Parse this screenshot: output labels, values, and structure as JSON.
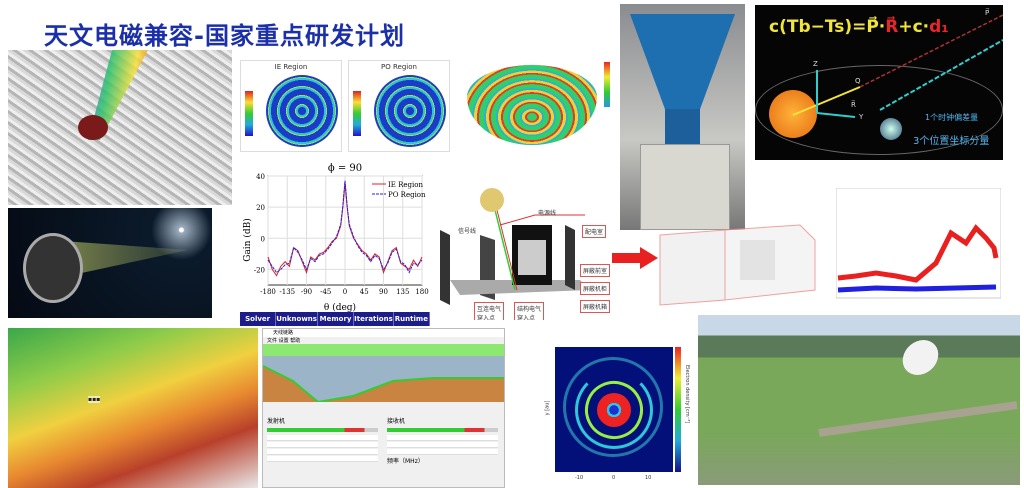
{
  "title": "天文电磁兼容-国家重点研发计划",
  "patterns": {
    "left_label": "IE Region",
    "right_label": "PO Region"
  },
  "gain_table_headers": [
    "Solver",
    "Unknowns",
    "Memory",
    "Iterations",
    "Runtime"
  ],
  "chart_data": {
    "type": "line",
    "title": "ϕ = 90",
    "xlabel": "θ (deg)",
    "ylabel": "Gain (dB)",
    "xlim": [
      -180,
      180
    ],
    "ylim": [
      -30,
      40
    ],
    "xticks": [
      -180,
      -135,
      -90,
      -45,
      0,
      45,
      90,
      135,
      180
    ],
    "yticks": [
      -20,
      0,
      20,
      40
    ],
    "grid": true,
    "legend_position": "top-right",
    "x": [
      -180,
      -170,
      -160,
      -150,
      -140,
      -130,
      -120,
      -110,
      -100,
      -90,
      -80,
      -70,
      -60,
      -50,
      -40,
      -30,
      -20,
      -10,
      -5,
      0,
      5,
      10,
      20,
      30,
      40,
      50,
      60,
      70,
      80,
      90,
      100,
      110,
      120,
      130,
      140,
      150,
      160,
      170,
      180
    ],
    "series": [
      {
        "name": "IE Region",
        "color": "#e02020",
        "style": "solid",
        "values": [
          -12,
          -20,
          -24,
          -18,
          -15,
          -18,
          -6,
          -8,
          -15,
          -22,
          -12,
          -14,
          -10,
          -9,
          -6,
          -2,
          0,
          8,
          20,
          36,
          20,
          8,
          0,
          -4,
          -8,
          -10,
          -14,
          -10,
          -12,
          -22,
          -15,
          -8,
          -6,
          -16,
          -18,
          -20,
          -14,
          -18,
          -12
        ]
      },
      {
        "name": "PO Region",
        "color": "#2020e0",
        "style": "dashed",
        "values": [
          -14,
          -18,
          -22,
          -20,
          -17,
          -16,
          -6,
          -9,
          -14,
          -20,
          -13,
          -15,
          -11,
          -10,
          -7,
          -3,
          1,
          9,
          21,
          37,
          21,
          9,
          1,
          -5,
          -9,
          -11,
          -15,
          -11,
          -13,
          -20,
          -16,
          -9,
          -7,
          -15,
          -17,
          -22,
          -16,
          -17,
          -14
        ]
      }
    ]
  },
  "equation": {
    "formula_prefix": "c(Tb−Ts)=P⃗·",
    "formula_r": "R⃗",
    "formula_mid": "+c·",
    "formula_d": "d₁",
    "note_clock": "1个时钟偏差量",
    "note_position": "3个位置坐标分量",
    "axis_z": "Z",
    "axis_y": "Y",
    "point_q": "Q",
    "vector_r": "R⃗",
    "vector_p": "P⃗"
  },
  "shield_diagram": {
    "power_line": "电源线",
    "signal_line": "信号线",
    "distribution_room": "配电室",
    "shield_anteroom": "屏蔽前室",
    "shield_cabinet": "屏蔽机柜",
    "shield_chassis": "屏蔽机箱",
    "interconnect_entry": "互连电气穿入点",
    "structure_entry": "结构电气穿入点"
  },
  "software": {
    "window_title": "天线链路",
    "menu": [
      "文件",
      "设置",
      "帮助"
    ],
    "transmitter": "发射机",
    "receiver": "接收机",
    "frequency": "频率（MHz）"
  },
  "spiral": {
    "ylabel": "y [au]",
    "colorbar_label": "Electron density [cm⁻³]",
    "ticks": [
      "-10",
      "0",
      "10"
    ]
  },
  "colors": {
    "title": "#1a2fa8",
    "table_header": "#1c1c8a",
    "arrow": "#e82020"
  }
}
